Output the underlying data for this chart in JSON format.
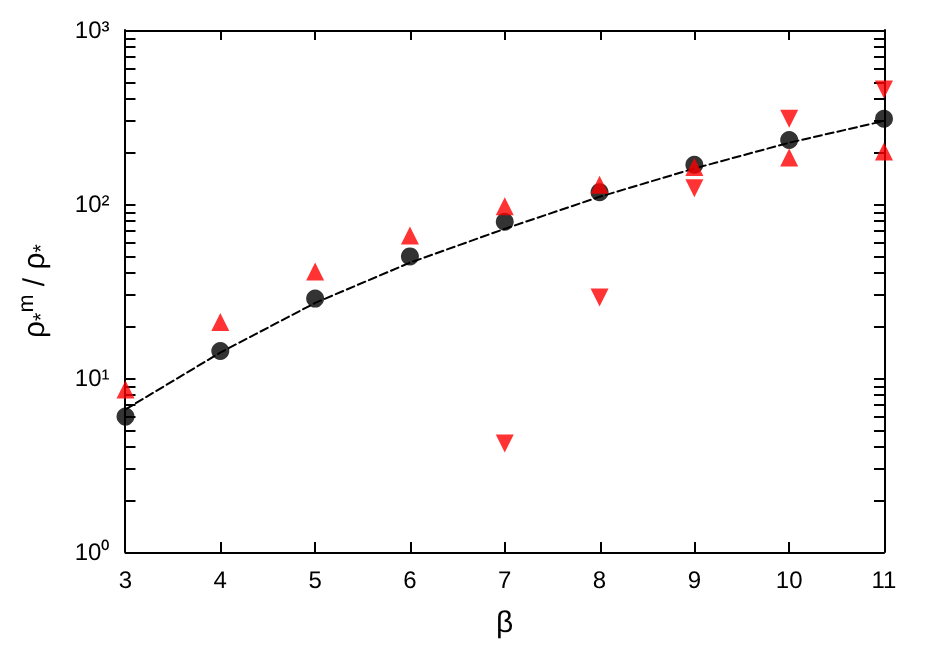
{
  "chart_data": {
    "type": "scatter",
    "xlabel": "β",
    "ylabel": "ρ$_{*}$$^{m}$ / ρ$_{*}$",
    "x": [
      3,
      4,
      5,
      6,
      7,
      8,
      9,
      10,
      11
    ],
    "series": [
      {
        "type": "line",
        "color": "#000000",
        "marker": "none",
        "line_style": "dashed",
        "x": [
          3,
          4,
          5,
          6,
          7,
          8,
          9,
          10,
          11
        ],
        "values": [
          6.6,
          14,
          27,
          46,
          72,
          110,
          160,
          225,
          300
        ]
      },
      {
        "color": "#000000",
        "marker": "circle",
        "values": [
          6,
          14.3,
          28.6,
          50,
          79,
          117,
          168,
          233,
          309
        ]
      },
      {
        "color": "#ff0000",
        "marker": "triangle",
        "values": [
          8.6,
          21,
          41,
          66,
          97,
          129,
          163,
          185,
          200
        ]
      },
      {
        "color": "#ff0000",
        "marker": "triangle-down",
        "x": [
          7,
          8,
          9,
          10,
          11
        ],
        "values": [
          4.2,
          29,
          123,
          309,
          455
        ]
      }
    ],
    "xlim": [
      3,
      11
    ],
    "xticks": [
      3,
      4,
      5,
      6,
      7,
      8,
      9,
      10,
      11
    ],
    "ylim": [
      1,
      1000
    ],
    "log": "y",
    "yticks": [
      {
        "value": 1,
        "label": "10⁰"
      },
      {
        "value": 2,
        "label": null
      },
      {
        "value": 3,
        "label": null
      },
      {
        "value": 4,
        "label": null
      },
      {
        "value": 5,
        "label": null
      },
      {
        "value": 6,
        "label": null
      },
      {
        "value": 7,
        "label": null
      },
      {
        "value": 8,
        "label": null
      },
      {
        "value": 9,
        "label": null
      },
      {
        "value": 10,
        "label": "10¹"
      },
      {
        "value": 20,
        "label": null
      },
      {
        "value": 30,
        "label": null
      },
      {
        "value": 40,
        "label": null
      },
      {
        "value": 50,
        "label": null
      },
      {
        "value": 60,
        "label": null
      },
      {
        "value": 70,
        "label": null
      },
      {
        "value": 80,
        "label": null
      },
      {
        "value": 90,
        "label": null
      },
      {
        "value": 100,
        "label": "10²"
      },
      {
        "value": 200,
        "label": null
      },
      {
        "value": 300,
        "label": null
      },
      {
        "value": 400,
        "label": null
      },
      {
        "value": 500,
        "label": null
      },
      {
        "value": 600,
        "label": null
      },
      {
        "value": 700,
        "label": null
      },
      {
        "value": 800,
        "label": null
      },
      {
        "value": 900,
        "label": null
      },
      {
        "value": 1000,
        "label": "10³"
      }
    ],
    "grid": false
  }
}
